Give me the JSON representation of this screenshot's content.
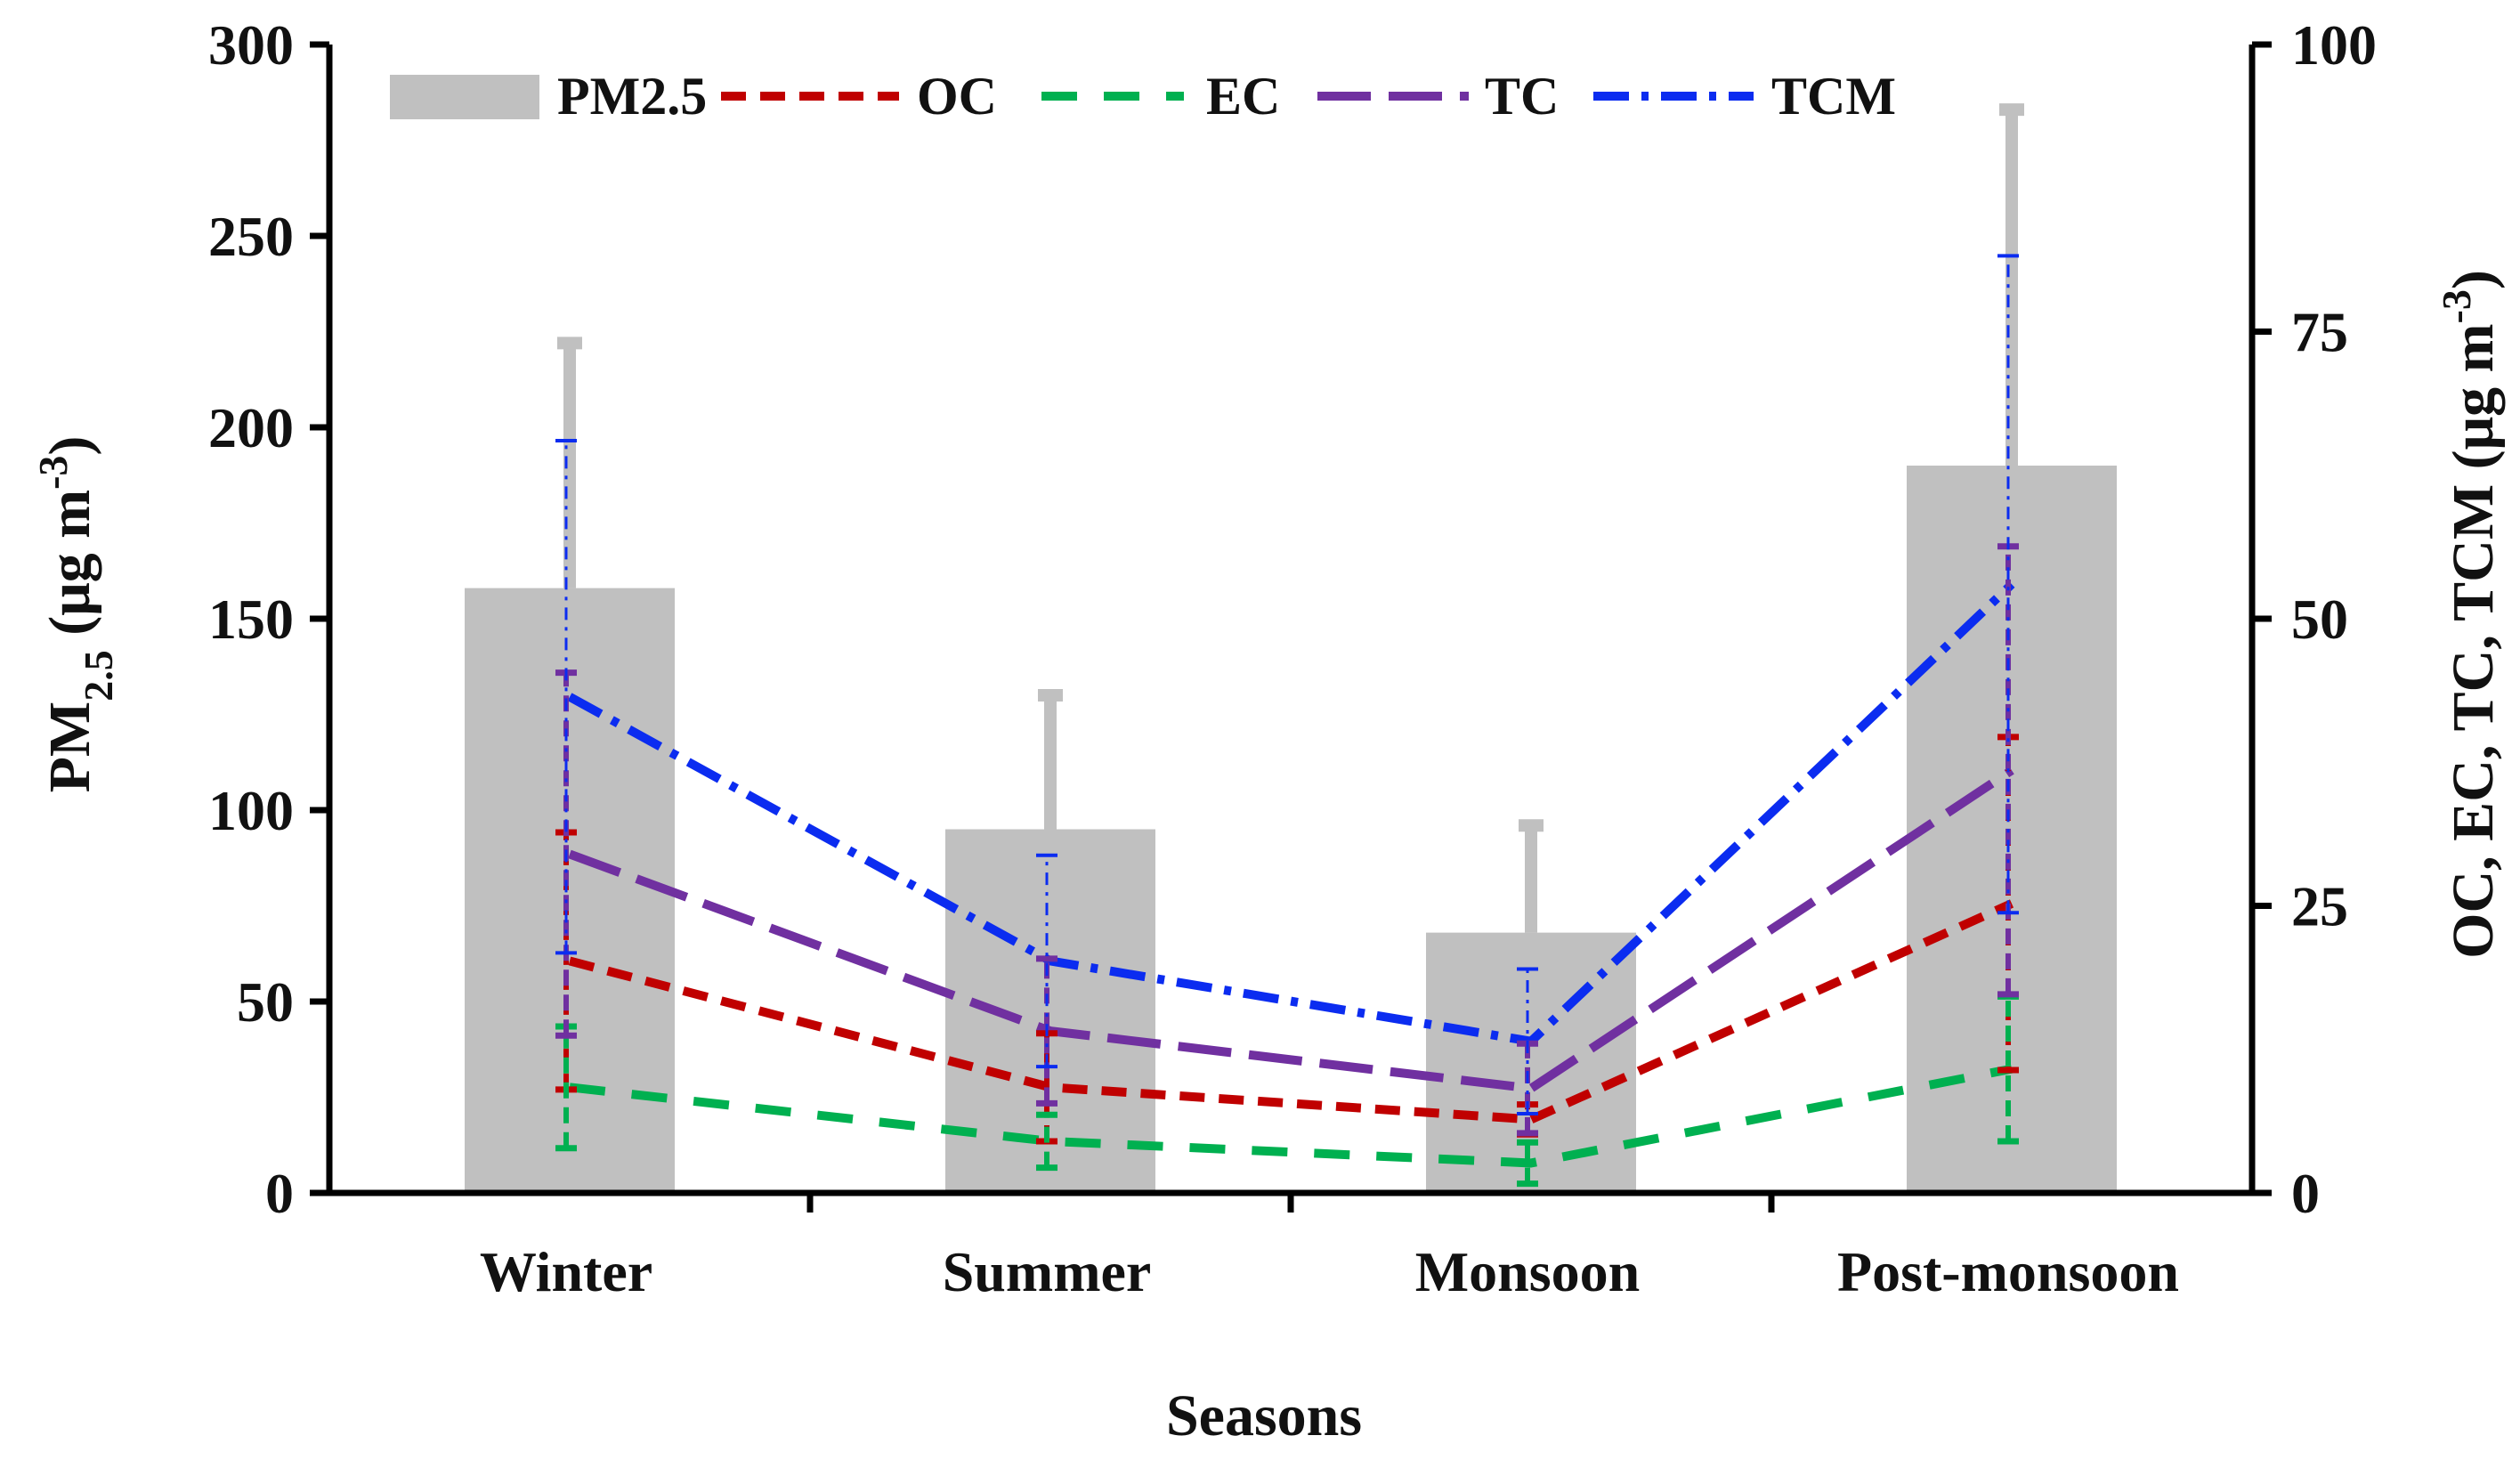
{
  "chart_data": {
    "type": "bar",
    "xlabel": "Seasons",
    "ylabel_left": {
      "base": "PM",
      "sub": "2.5",
      "unit": " (μg m",
      "sup": "-3",
      "close": ")"
    },
    "ylabel_right": {
      "text": "OC, EC, TC, TCM (μg m",
      "sup": "-3",
      "close": ")"
    },
    "categories": [
      "Winter",
      "Summer",
      "Monsoon",
      "Post-monsoon"
    ],
    "y_left": {
      "min": 0,
      "max": 300,
      "ticks": [
        0,
        50,
        100,
        150,
        200,
        250,
        300
      ]
    },
    "y_right": {
      "min": 0,
      "max": 100,
      "ticks": [
        0,
        25,
        50,
        75,
        100
      ]
    },
    "bars": {
      "name": "PM2.5",
      "axis": "left",
      "color": "#c0c0c0",
      "values": [
        158,
        95,
        68,
        190
      ],
      "errors": [
        64,
        35,
        28,
        93
      ]
    },
    "series": [
      {
        "name": "OC",
        "axis": "right",
        "color": "#c00000",
        "dash": "28 16",
        "values": [
          20.2,
          9.2,
          6.4,
          25.2
        ],
        "errors": [
          11.2,
          4.7,
          1.3,
          14.5
        ]
      },
      {
        "name": "EC",
        "axis": "right",
        "color": "#00b050",
        "dash": "40 30",
        "values": [
          9.2,
          4.5,
          2.6,
          10.8
        ],
        "errors": [
          5.3,
          2.3,
          1.8,
          6.3
        ]
      },
      {
        "name": "TC",
        "axis": "right",
        "color": "#7030a0",
        "dash": "60 20",
        "values": [
          29.5,
          14.1,
          9.1,
          36.8
        ],
        "errors": [
          15.8,
          6.3,
          3.9,
          19.5
        ]
      },
      {
        "name": "TCM",
        "axis": "right",
        "color": "#0b2cf0",
        "dash": "40 14 8 14",
        "values": [
          43.2,
          20.2,
          13.2,
          53.0
        ],
        "errors": [
          22.3,
          9.2,
          6.3,
          28.6
        ]
      }
    ],
    "legend_position": "top-left"
  }
}
